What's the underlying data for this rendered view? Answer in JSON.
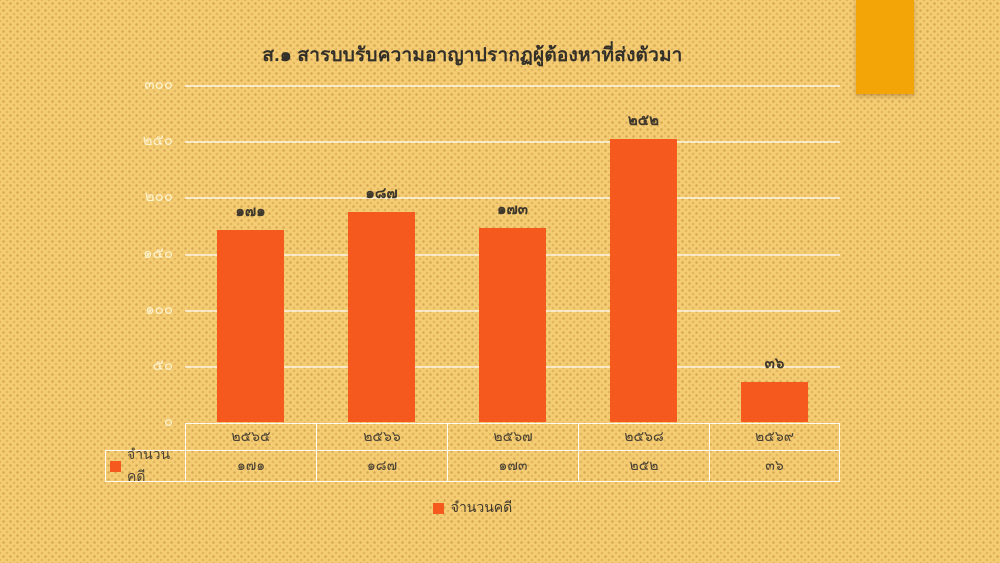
{
  "title": "ส.๑ สารบบรับความอาญาปรากฏผู้ต้องหาที่ส่งตัวมา",
  "legend": {
    "label": "จำนวนคดี"
  },
  "colors": {
    "background": "#F4CC72",
    "bar": "#F5591D",
    "corner_accent": "#F3A508",
    "gridline": "rgba(255,255,255,0.62)",
    "axis_label": "rgba(255,247,215,0.92)"
  },
  "chart_data": {
    "type": "bar",
    "title": "ส.๑ สารบบรับความอาญาปรากฏผู้ต้องหาที่ส่งตัวมา",
    "categories": [
      "๒๕๖๕",
      "๒๕๖๖",
      "๒๕๖๗",
      "๒๕๖๘",
      "๒๕๖๙"
    ],
    "categories_values": [
      2565,
      2566,
      2567,
      2568,
      2569
    ],
    "series": [
      {
        "name": "จำนวนคดี",
        "values": [
          171,
          187,
          173,
          252,
          36
        ],
        "value_labels": [
          "๑๗๑",
          "๑๘๗",
          "๑๗๓",
          "๒๕๒",
          "๓๖"
        ],
        "color": "#F5591D"
      }
    ],
    "xlabel": "",
    "ylabel": "",
    "ylim": [
      0,
      300
    ],
    "yticks": [
      0,
      50,
      100,
      150,
      200,
      250,
      300
    ],
    "ytick_labels": [
      "๐",
      "๕๐",
      "๑๐๐",
      "๑๕๐",
      "๒๐๐",
      "๒๕๐",
      "๓๐๐"
    ],
    "grid": true,
    "legend_position": "bottom",
    "data_labels_shown": true
  },
  "data_table": {
    "row_label": "จำนวนคดี",
    "column_headers": [
      "๒๕๖๕",
      "๒๕๖๖",
      "๒๕๖๗",
      "๒๕๖๘",
      "๒๕๖๙"
    ],
    "row_values": [
      "๑๗๑",
      "๑๘๗",
      "๑๗๓",
      "๒๕๒",
      "๓๖"
    ]
  }
}
